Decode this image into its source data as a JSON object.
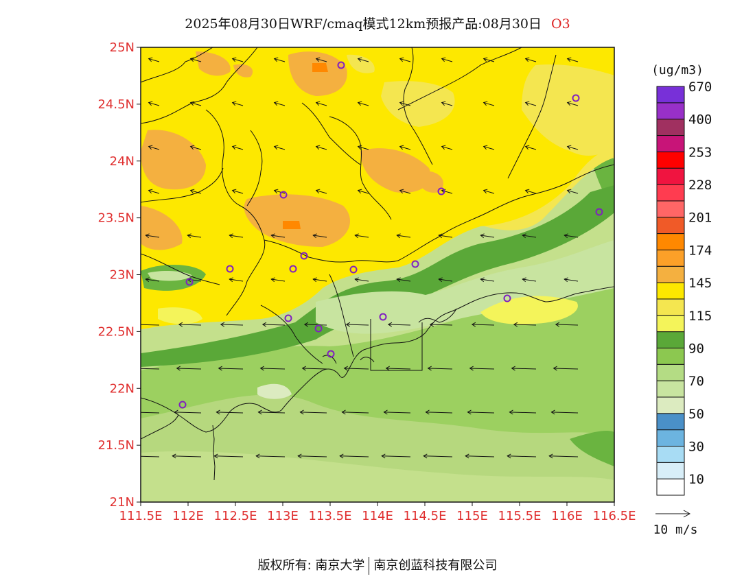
{
  "title": {
    "main": "2025年08月30日WRF/cmaq模式12km预报产品:08月30日",
    "variable": "O3"
  },
  "map": {
    "lat_labels": [
      "25N",
      "24.5N",
      "24N",
      "23.5N",
      "23N",
      "22.5N",
      "22N",
      "21.5N",
      "21N"
    ],
    "lon_labels": [
      "111.5E",
      "112E",
      "112.5E",
      "113E",
      "113.5E",
      "114E",
      "114.5E",
      "115E",
      "115.5E",
      "116E",
      "116.5E"
    ],
    "lat_range": [
      21,
      25
    ],
    "lon_range": [
      111.5,
      116.5
    ],
    "station_marker_color": "#8020c0"
  },
  "colorbar": {
    "unit": "(ug/m3)",
    "colors": [
      "#ffffff",
      "#d8eef8",
      "#a8dcf4",
      "#6cb4e0",
      "#4a90c8",
      "#dcebc0",
      "#c8e4a0",
      "#b4dc84",
      "#8cc850",
      "#5aa838",
      "#f4f45a",
      "#f4e650",
      "#fde800",
      "#f4b040",
      "#fca028",
      "#ff8800",
      "#f05a28",
      "#ff6666",
      "#ff3c50",
      "#f01440",
      "#ff0000",
      "#c81478",
      "#a03060",
      "#9830c8",
      "#7830d8"
    ],
    "labels": [
      "10",
      "30",
      "50",
      "70",
      "90",
      "115",
      "145",
      "174",
      "201",
      "228",
      "253",
      "400",
      "670"
    ]
  },
  "wind_reference": "10 m/s",
  "footer": {
    "left": "版权所有: 南京大学",
    "right": "南京创蓝科技有限公司"
  }
}
